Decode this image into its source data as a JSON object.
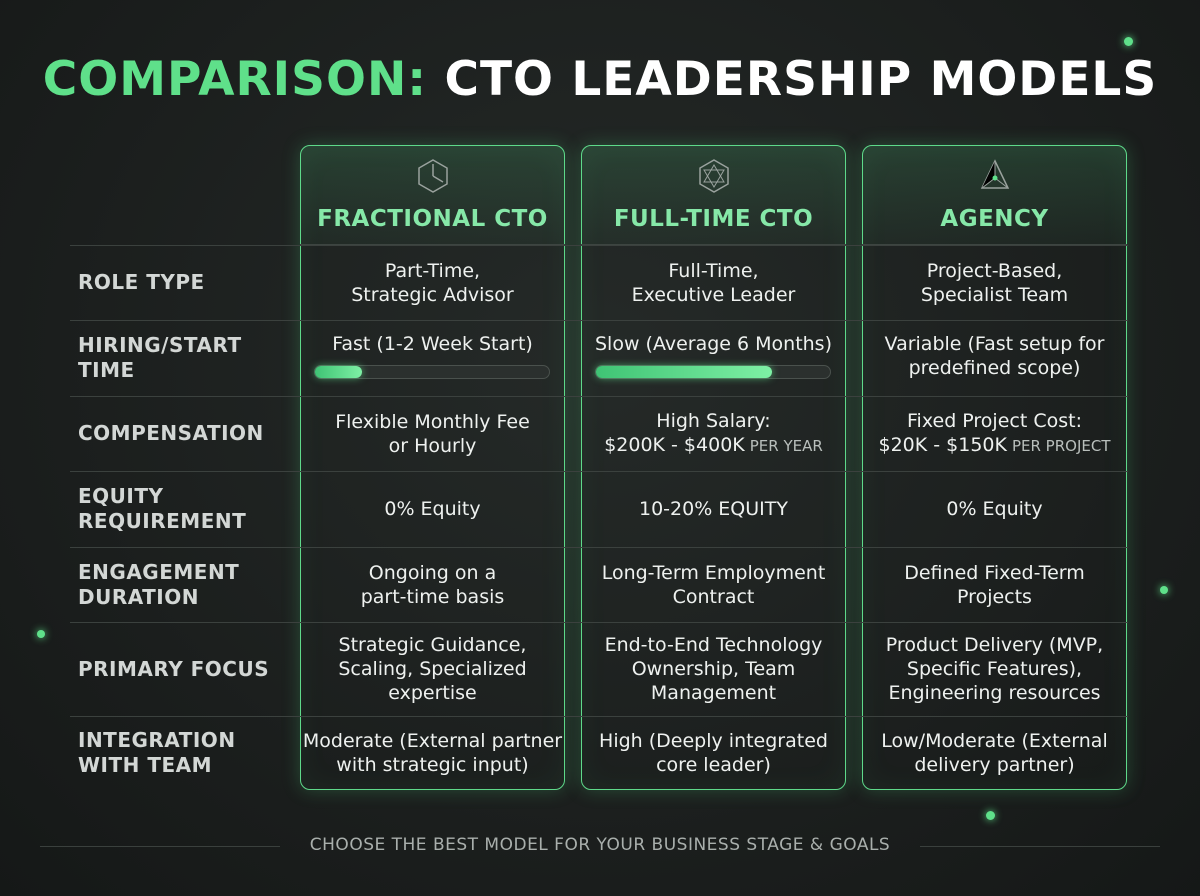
{
  "title": {
    "highlight": "COMPARISON:",
    "rest": "CTO LEADERSHIP MODELS"
  },
  "columns": [
    "FRACTIONAL CTO",
    "FULL-TIME CTO",
    "AGENCY"
  ],
  "rows": [
    {
      "label": [
        "ROLE TYPE"
      ],
      "cells": [
        {
          "lines": [
            "Part-Time,",
            "Strategic Advisor"
          ]
        },
        {
          "lines": [
            "Full-Time,",
            "Executive Leader"
          ]
        },
        {
          "lines": [
            "Project-Based,",
            "Specialist Team"
          ]
        }
      ]
    },
    {
      "label": [
        "HIRING/START",
        "TIME"
      ],
      "cells": [
        {
          "lines": [
            "Fast (1-2 Week Start)"
          ]
        },
        {
          "lines": [
            "Slow (Average 6 Months)"
          ]
        },
        {
          "lines": [
            "Variable (Fast setup for",
            "predefined scope)"
          ]
        }
      ]
    },
    {
      "label": [
        "COMPENSATION"
      ],
      "cells": [
        {
          "lines": [
            "Flexible Monthly Fee",
            "or Hourly"
          ]
        },
        {
          "lines": [
            "High Salary:",
            "$200K - $400K"
          ],
          "note": "PER YEAR"
        },
        {
          "lines": [
            "Fixed Project Cost:",
            "$20K - $150K"
          ],
          "note": "PER PROJECT"
        }
      ]
    },
    {
      "label": [
        "EQUITY",
        "REQUIREMENT"
      ],
      "cells": [
        {
          "lines": [
            "0% Equity"
          ]
        },
        {
          "lines": [
            "10-20% EQUITY"
          ]
        },
        {
          "lines": [
            "0% Equity"
          ]
        }
      ]
    },
    {
      "label": [
        "ENGAGEMENT",
        "DURATION"
      ],
      "cells": [
        {
          "lines": [
            "Ongoing on a",
            "part-time basis"
          ]
        },
        {
          "lines": [
            "Long-Term Employment",
            "Contract"
          ]
        },
        {
          "lines": [
            "Defined Fixed-Term",
            "Projects"
          ]
        }
      ]
    },
    {
      "label": [
        "PRIMARY FOCUS"
      ],
      "cells": [
        {
          "lines": [
            "Strategic Guidance,",
            "Scaling, Specialized",
            "expertise"
          ]
        },
        {
          "lines": [
            "End-to-End Technology",
            "Ownership, Team",
            "Management"
          ]
        },
        {
          "lines": [
            "Product Delivery (MVP,",
            "Specific Features),",
            "Engineering resources"
          ]
        }
      ]
    },
    {
      "label": [
        "INTEGRATION",
        "WITH TEAM"
      ],
      "cells": [
        {
          "lines": [
            "Moderate (External partner",
            "with strategic input)"
          ]
        },
        {
          "lines": [
            "High (Deeply integrated",
            "core leader)"
          ]
        },
        {
          "lines": [
            "Low/Moderate (External",
            "delivery partner)"
          ]
        }
      ]
    }
  ],
  "footer": "CHOOSE THE BEST MODEL FOR YOUR BUSINESS STAGE & GOALS"
}
